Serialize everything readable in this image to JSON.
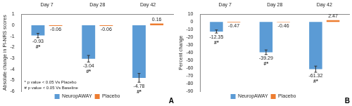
{
  "chart_data": [
    {
      "type": "bar",
      "y_label": "Absolute change in PI-NRS scores",
      "categories": [
        "Day 7",
        "Day 28",
        "Day 42"
      ],
      "series": [
        {
          "name": "NeuropAWAY",
          "color": "#5b9bd5",
          "values": [
            -0.93,
            -3.04,
            -4.78
          ],
          "errors": [
            0.2,
            0.3,
            0.4
          ]
        },
        {
          "name": "Placebo",
          "color": "#ed7d31",
          "values": [
            -0.06,
            -0.06,
            0.16
          ]
        }
      ],
      "ylim": [
        -6,
        1
      ],
      "yticks": [
        1,
        0,
        -1,
        -2,
        -3,
        -4,
        -5,
        -6
      ],
      "grid": false,
      "legend": "bottom",
      "data_labels": true,
      "annotations": [
        {
          "text": "#*",
          "series": "NeuropAWAY",
          "category": "Day 7"
        },
        {
          "text": "#*",
          "series": "NeuropAWAY",
          "category": "Day 28"
        },
        {
          "text": "#*",
          "series": "NeuropAWAY",
          "category": "Day 42"
        }
      ],
      "notes": [
        "* p value < 0.05 Vs Placebo",
        "# p value < 0.05 Vs Baseline"
      ],
      "panel_label": "A"
    },
    {
      "type": "bar",
      "y_label": "Percent change",
      "categories": [
        "Day 7",
        "Day 28",
        "Day 42"
      ],
      "series": [
        {
          "name": "NeuropAWAY",
          "color": "#5b9bd5",
          "values": [
            -12.35,
            -39.29,
            -61.32
          ],
          "errors": [
            2,
            3,
            4
          ]
        },
        {
          "name": "Placebo",
          "color": "#ed7d31",
          "values": [
            -0.47,
            -0.46,
            2.47
          ]
        }
      ],
      "ylim": [
        -90,
        10
      ],
      "yticks": [
        10,
        0,
        -10,
        -20,
        -30,
        -40,
        -50,
        -60,
        -70,
        -80,
        -90
      ],
      "grid": false,
      "legend": "bottom",
      "data_labels": true,
      "annotations": [
        {
          "text": "#*",
          "series": "NeuropAWAY",
          "category": "Day 7"
        },
        {
          "text": "#*",
          "series": "NeuropAWAY",
          "category": "Day 28"
        },
        {
          "text": "#*",
          "series": "NeuropAWAY",
          "category": "Day 42"
        }
      ],
      "panel_label": "B"
    }
  ]
}
